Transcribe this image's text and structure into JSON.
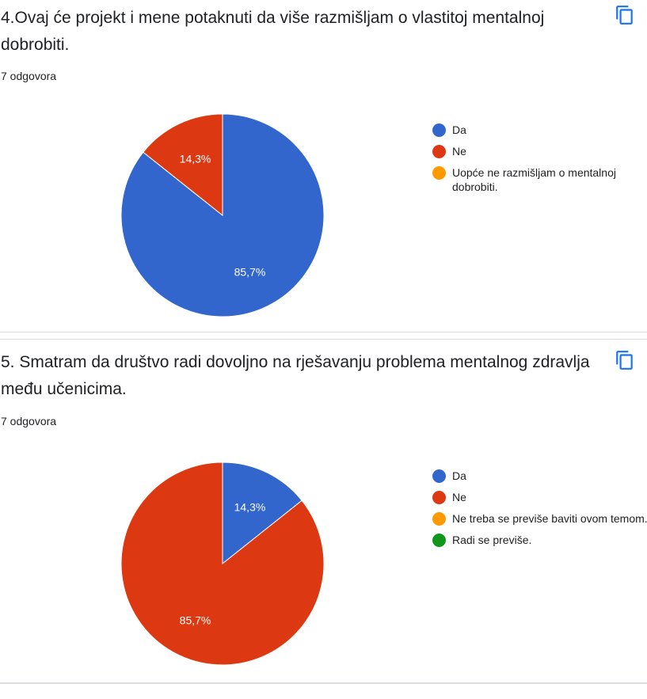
{
  "questions": [
    {
      "title": "4.Ovaj će projekt i mene potaknuti da više razmišljam o vlastitoj mentalnoj dobrobiti.",
      "count": "7 odgovora",
      "copy_icon": "copy-icon"
    },
    {
      "title": "5. Smatram da društvo radi dovoljno na rješavanju problema mentalnog zdravlja među učenicima.",
      "count": "7 odgovora",
      "copy_icon": "copy-icon"
    }
  ],
  "chart_data": [
    {
      "type": "pie",
      "categories": [
        "Da",
        "Ne",
        "Uopće ne razmišljam o mentalnoj dobrobiti."
      ],
      "values": [
        85.7,
        14.3,
        0
      ],
      "data_labels": [
        "85,7%",
        "14,3%",
        ""
      ],
      "colors": [
        "#3366cc",
        "#dc3912",
        "#ff9900"
      ],
      "legend_position": "right"
    },
    {
      "type": "pie",
      "categories": [
        "Da",
        "Ne",
        "Ne treba se previše baviti ovom temom.",
        "Radi se previše."
      ],
      "values": [
        14.3,
        85.7,
        0,
        0
      ],
      "data_labels": [
        "14,3%",
        "85,7%",
        "",
        ""
      ],
      "colors": [
        "#3366cc",
        "#dc3912",
        "#ff9900",
        "#109618"
      ],
      "legend_position": "right"
    }
  ]
}
